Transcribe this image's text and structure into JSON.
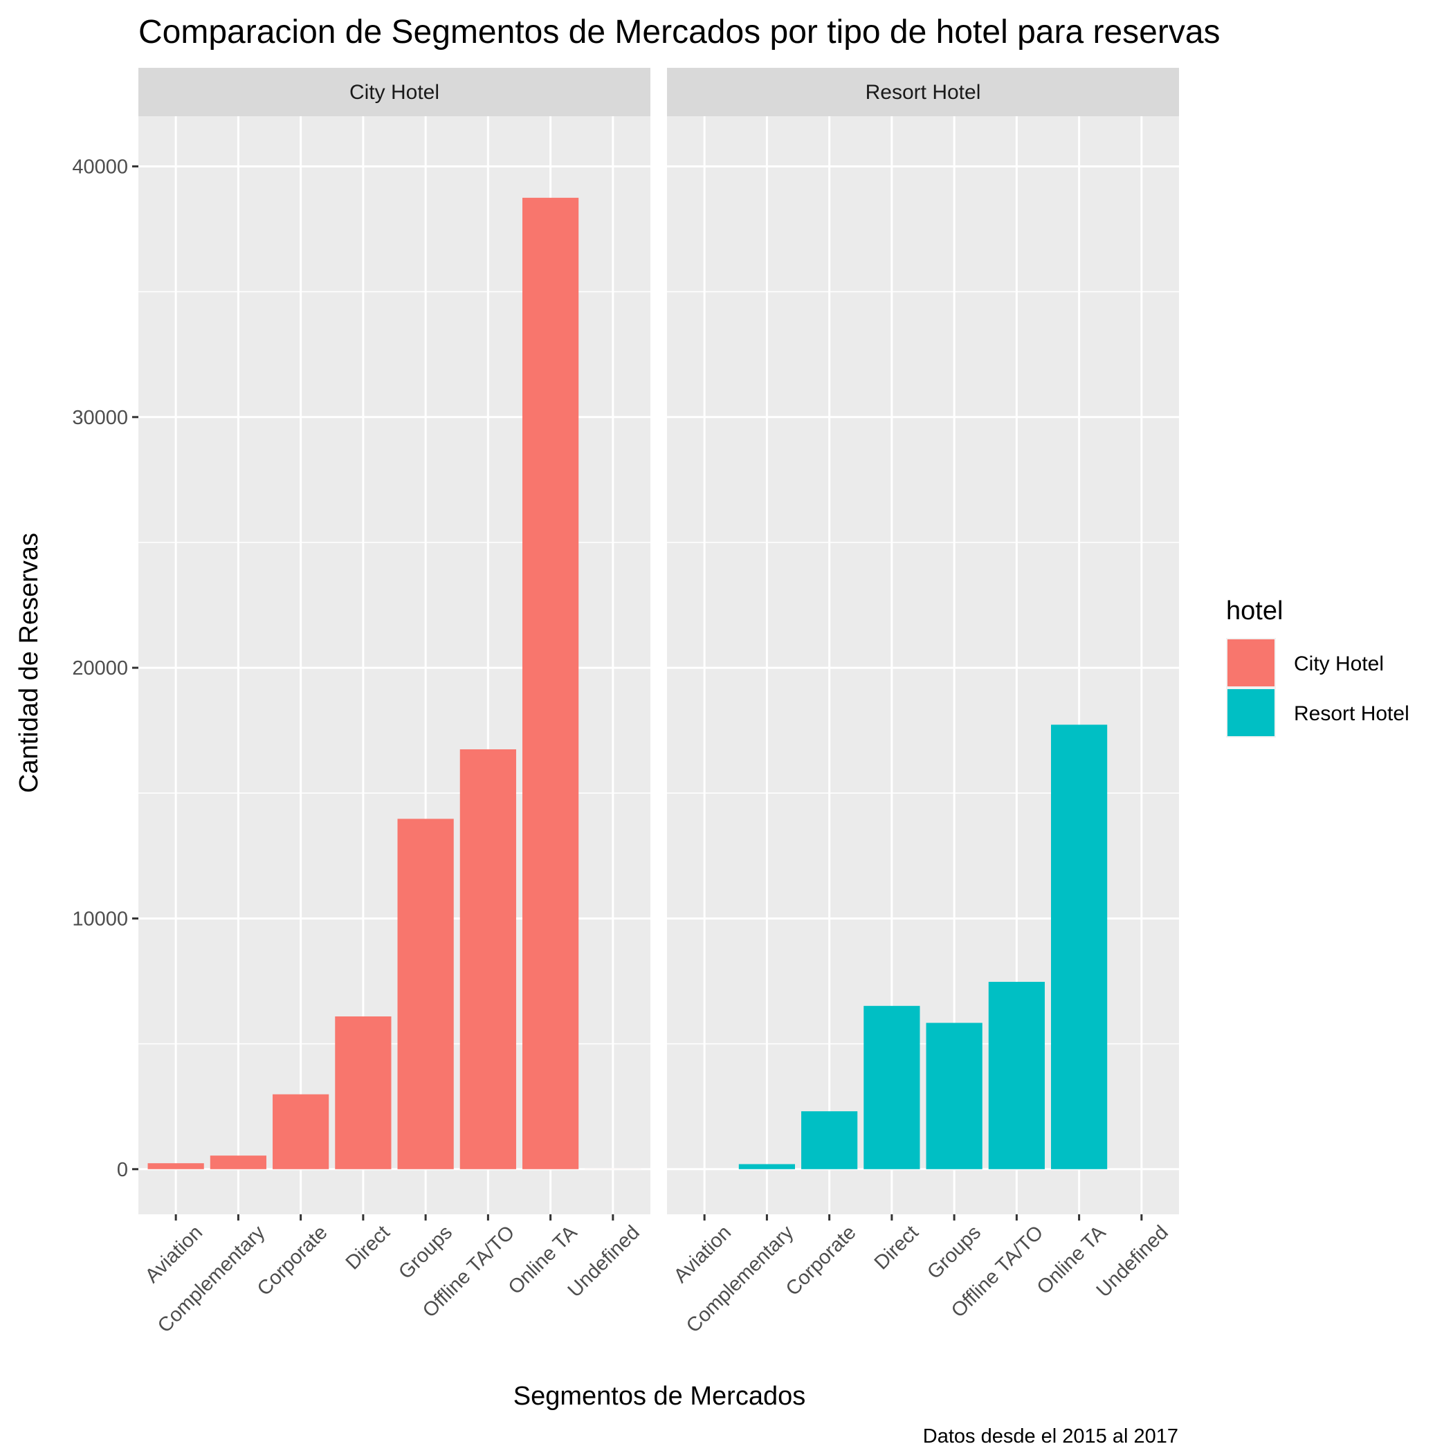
{
  "chart_data": {
    "type": "bar",
    "title": "Comparacion de Segmentos de Mercados por tipo de hotel para reservas",
    "xlabel": "Segmentos de Mercados",
    "ylabel": "Cantidad de Reservas",
    "caption": "Datos desde el 2015 al 2017",
    "categories": [
      "Aviation",
      "Complementary",
      "Corporate",
      "Direct",
      "Groups",
      "Offline TA/TO",
      "Online TA",
      "Undefined"
    ],
    "ylim": [
      -1800,
      42000
    ],
    "yticks": [
      0,
      10000,
      20000,
      30000,
      40000
    ],
    "grid": true,
    "legend": {
      "title": "hotel",
      "position": "right"
    },
    "facets": [
      {
        "name": "City Hotel",
        "color": "#F8766D",
        "values": [
          237,
          542,
          2986,
          6093,
          13975,
          16747,
          38748,
          2
        ]
      },
      {
        "name": "Resort Hotel",
        "color": "#00BFC4",
        "values": [
          0,
          201,
          2309,
          6513,
          5836,
          7472,
          17729,
          0
        ]
      }
    ]
  }
}
